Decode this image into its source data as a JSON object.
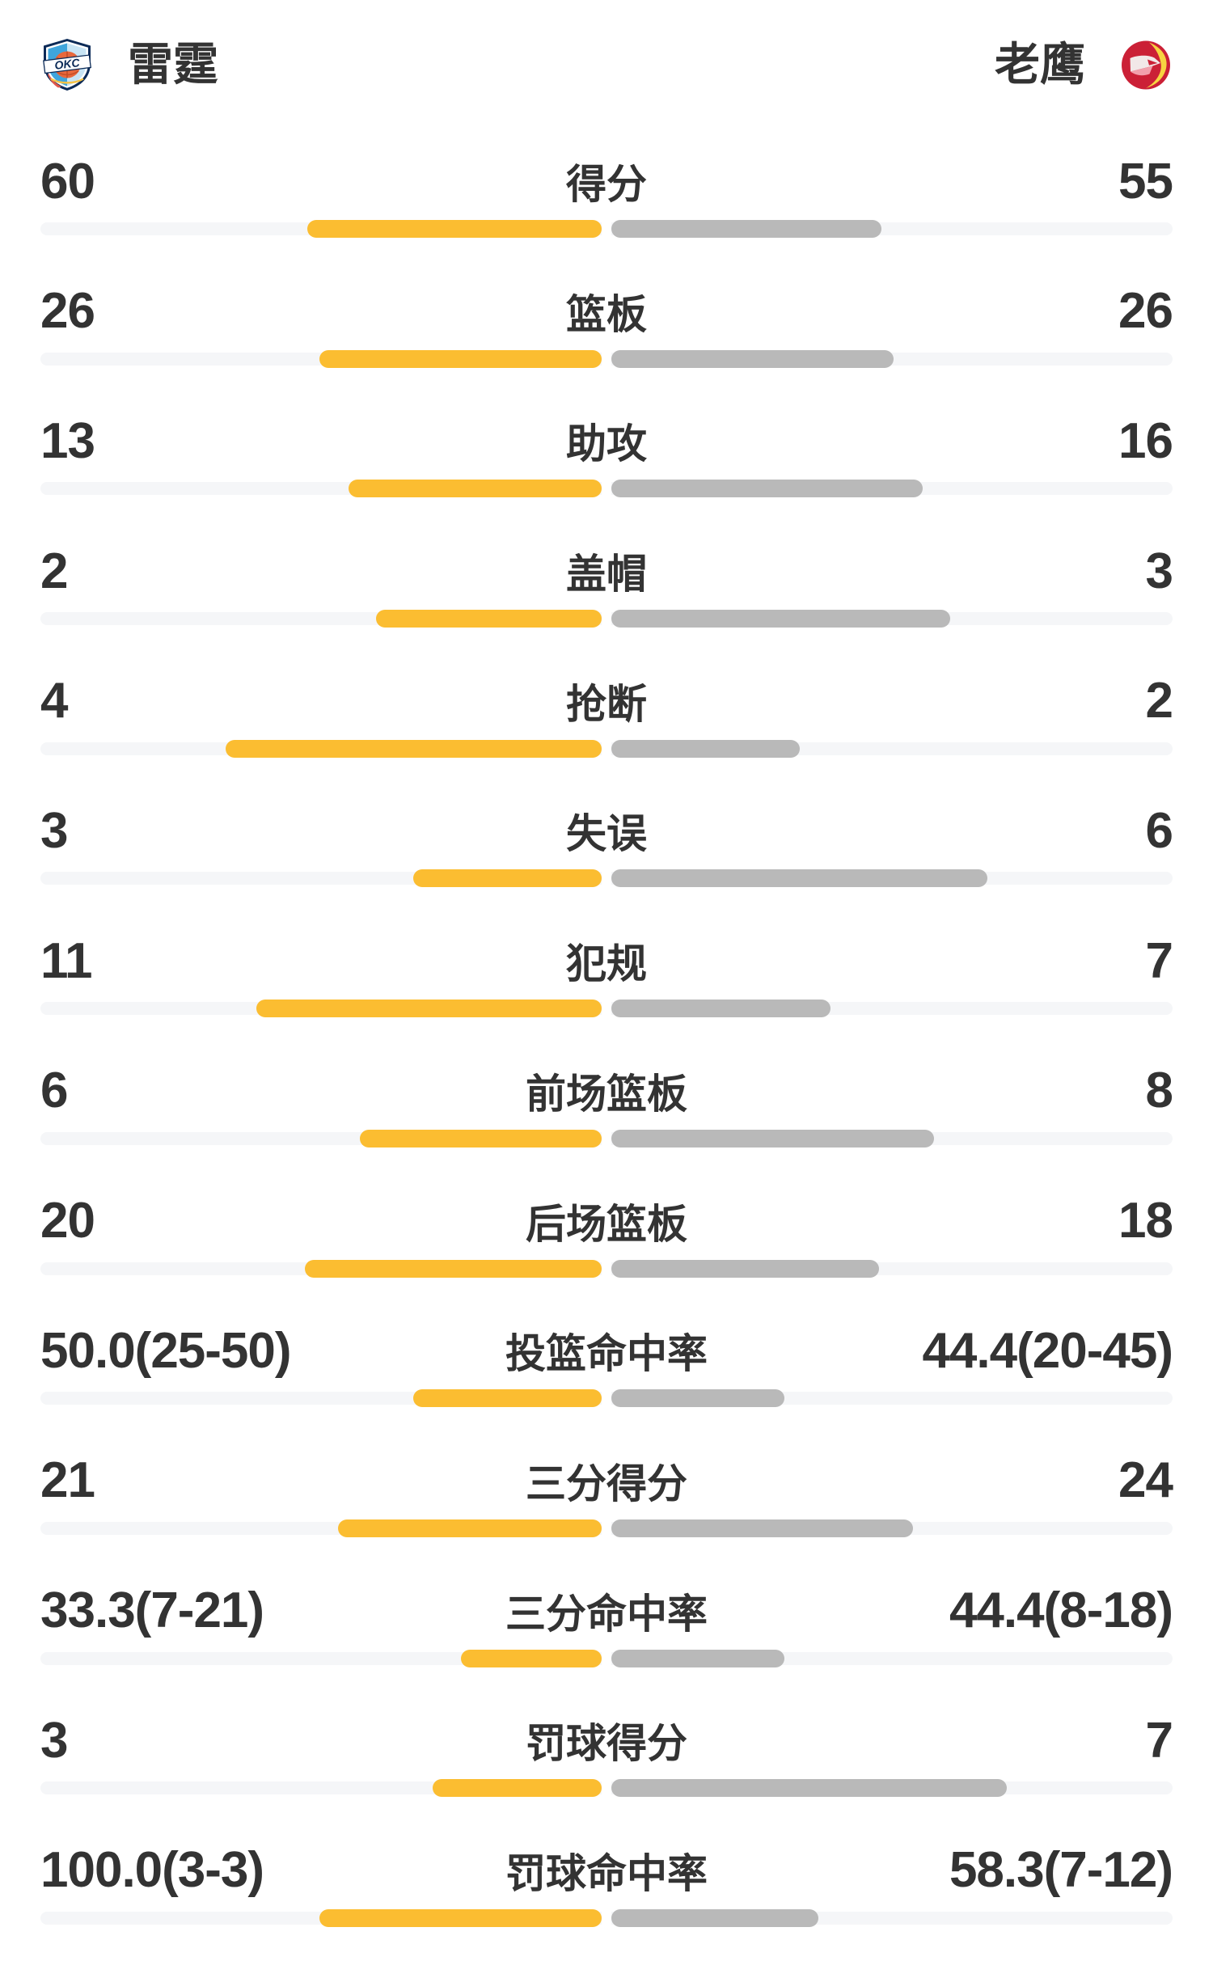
{
  "header": {
    "left_team": {
      "name": "雷霆",
      "logo": "okc-thunder-logo"
    },
    "right_team": {
      "name": "老鹰",
      "logo": "atlanta-hawks-logo"
    }
  },
  "colors": {
    "left_bar": "#FBBD31",
    "right_bar": "#B9B9B9",
    "track": "#F5F6F8",
    "gap": "#FFFFFF",
    "text": "#333333",
    "background": "#FFFFFF"
  },
  "chart_data": {
    "type": "bar",
    "subtype": "diverging-team-comparison",
    "teams": [
      "雷霆",
      "老鹰"
    ],
    "categories": [
      "得分",
      "篮板",
      "助攻",
      "盖帽",
      "抢断",
      "失误",
      "犯规",
      "前场篮板",
      "后场篮板",
      "投篮命中率",
      "三分得分",
      "三分命中率",
      "罚球得分",
      "罚球命中率"
    ],
    "series": [
      {
        "name": "雷霆",
        "values": [
          60,
          26,
          13,
          2,
          4,
          3,
          11,
          6,
          20,
          50.0,
          21,
          33.3,
          3,
          100.0
        ]
      },
      {
        "name": "老鹰",
        "values": [
          55,
          26,
          16,
          3,
          2,
          6,
          7,
          8,
          18,
          44.4,
          24,
          44.4,
          7,
          58.3
        ]
      }
    ],
    "rows": [
      {
        "label": "得分",
        "left_value": "60",
        "right_value": "55",
        "left_bar_pct_of_half": 52.0,
        "right_bar_pct_of_half": 47.7
      },
      {
        "label": "篮板",
        "left_value": "26",
        "right_value": "26",
        "left_bar_pct_of_half": 49.9,
        "right_bar_pct_of_half": 49.9
      },
      {
        "label": "助攻",
        "left_value": "13",
        "right_value": "16",
        "left_bar_pct_of_half": 44.7,
        "right_bar_pct_of_half": 55.0
      },
      {
        "label": "盖帽",
        "left_value": "2",
        "right_value": "3",
        "left_bar_pct_of_half": 39.9,
        "right_bar_pct_of_half": 59.9
      },
      {
        "label": "抢断",
        "left_value": "4",
        "right_value": "2",
        "left_bar_pct_of_half": 66.4,
        "right_bar_pct_of_half": 33.3
      },
      {
        "label": "失误",
        "left_value": "3",
        "right_value": "6",
        "left_bar_pct_of_half": 33.3,
        "right_bar_pct_of_half": 66.4
      },
      {
        "label": "犯规",
        "left_value": "11",
        "right_value": "7",
        "left_bar_pct_of_half": 61.0,
        "right_bar_pct_of_half": 38.7
      },
      {
        "label": "前场篮板",
        "left_value": "6",
        "right_value": "8",
        "left_bar_pct_of_half": 42.7,
        "right_bar_pct_of_half": 57.0
      },
      {
        "label": "后场篮板",
        "left_value": "20",
        "right_value": "18",
        "left_bar_pct_of_half": 52.4,
        "right_bar_pct_of_half": 47.3
      },
      {
        "label": "投篮命中率",
        "left_value": "50.0(25-50)",
        "right_value": "44.4(20-45)",
        "left_bar_pct_of_half": 33.3,
        "right_bar_pct_of_half": 30.6
      },
      {
        "label": "三分得分",
        "left_value": "21",
        "right_value": "24",
        "left_bar_pct_of_half": 46.6,
        "right_bar_pct_of_half": 53.3
      },
      {
        "label": "三分命中率",
        "left_value": "33.3(7-21)",
        "right_value": "44.4(8-18)",
        "left_bar_pct_of_half": 24.9,
        "right_bar_pct_of_half": 30.6
      },
      {
        "label": "罚球得分",
        "left_value": "3",
        "right_value": "7",
        "left_bar_pct_of_half": 29.9,
        "right_bar_pct_of_half": 69.9
      },
      {
        "label": "罚球命中率",
        "left_value": "100.0(3-3)",
        "right_value": "58.3(7-12)",
        "left_bar_pct_of_half": 49.9,
        "right_bar_pct_of_half": 36.6
      }
    ]
  }
}
